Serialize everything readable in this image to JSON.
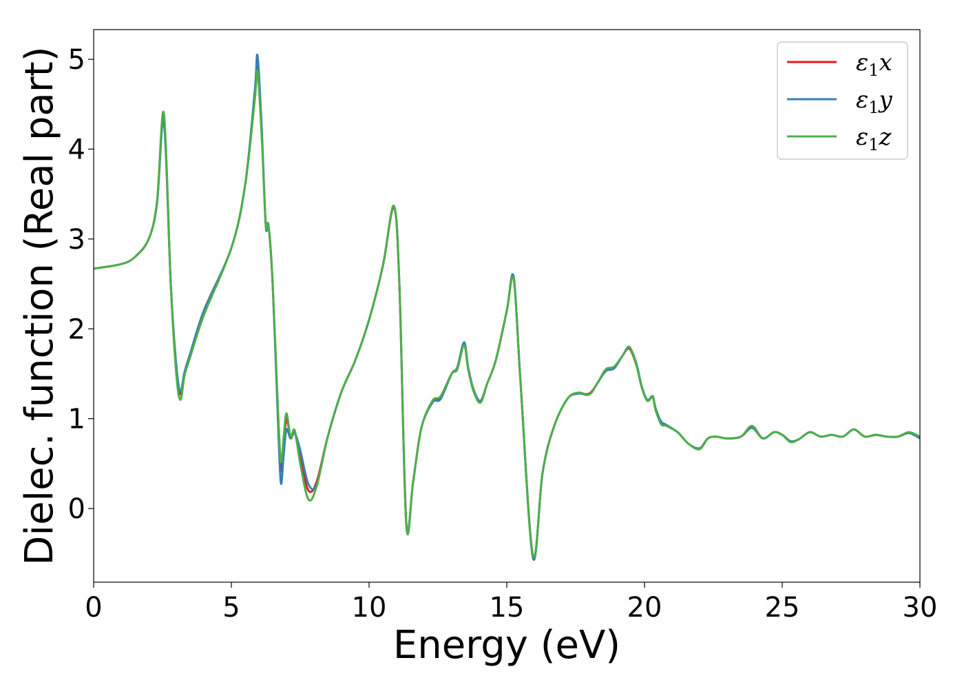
{
  "chart_data": {
    "type": "line",
    "title": "",
    "xlabel": "Energy (eV)",
    "ylabel": "Dielec. function (Real part)",
    "xlim": [
      0,
      30
    ],
    "ylim": [
      -0.82,
      5.33
    ],
    "xticks": [
      0,
      5,
      10,
      15,
      20,
      25,
      30
    ],
    "xtick_labels": [
      "0",
      "5",
      "10",
      "15",
      "20",
      "25",
      "30"
    ],
    "yticks": [
      0,
      1,
      2,
      3,
      4,
      5
    ],
    "ytick_labels": [
      "0",
      "1",
      "2",
      "3",
      "4",
      "5"
    ],
    "grid": false,
    "legend_position": "top-right",
    "series": [
      {
        "name": "ε1x",
        "name_base": "ε",
        "name_sub": "1",
        "name_var": "x",
        "color": "#e41a1c",
        "x": [
          0,
          1,
          1.5,
          2,
          2.3,
          2.55,
          2.8,
          3.0,
          3.15,
          3.3,
          3.5,
          4,
          5,
          5.5,
          5.85,
          5.95,
          6.1,
          6.25,
          6.35,
          6.5,
          6.7,
          6.8,
          6.9,
          7.0,
          7.15,
          7.3,
          7.5,
          7.8,
          8.1,
          8.5,
          9,
          9.5,
          10,
          10.5,
          10.9,
          11.1,
          11.35,
          11.6,
          11.9,
          12.3,
          12.6,
          13,
          13.2,
          13.45,
          13.6,
          13.8,
          14.05,
          14.3,
          14.6,
          15,
          15.25,
          15.5,
          15.95,
          16.3,
          16.7,
          17.2,
          17.6,
          18.0,
          18.3,
          18.6,
          18.9,
          19.2,
          19.45,
          19.7,
          19.9,
          20.1,
          20.3,
          20.4,
          20.6,
          20.8,
          21.2,
          21.6,
          22.0,
          22.3,
          22.6,
          23.0,
          23.5,
          23.9,
          24.3,
          24.7,
          25.0,
          25.3,
          25.6,
          26.0,
          26.4,
          26.8,
          27.2,
          27.6,
          28.0,
          28.4,
          28.8,
          29.2,
          29.6,
          30.0
        ],
        "values": [
          2.67,
          2.72,
          2.8,
          3.0,
          3.4,
          4.35,
          2.5,
          1.55,
          1.27,
          1.5,
          1.7,
          2.2,
          2.9,
          3.6,
          4.6,
          4.93,
          4.2,
          3.15,
          3.15,
          2.5,
          1.0,
          0.42,
          0.7,
          1.0,
          0.8,
          0.85,
          0.55,
          0.2,
          0.3,
          0.8,
          1.3,
          1.65,
          2.1,
          2.7,
          3.35,
          2.5,
          -0.15,
          0.3,
          0.9,
          1.18,
          1.25,
          1.5,
          1.55,
          1.82,
          1.55,
          1.3,
          1.2,
          1.4,
          1.65,
          2.2,
          2.57,
          1.4,
          -0.53,
          0.4,
          0.9,
          1.22,
          1.28,
          1.28,
          1.4,
          1.55,
          1.57,
          1.7,
          1.78,
          1.6,
          1.35,
          1.2,
          1.24,
          1.1,
          0.95,
          0.92,
          0.85,
          0.72,
          0.67,
          0.78,
          0.8,
          0.78,
          0.8,
          0.9,
          0.78,
          0.85,
          0.82,
          0.75,
          0.77,
          0.85,
          0.8,
          0.82,
          0.8,
          0.88,
          0.8,
          0.82,
          0.8,
          0.8,
          0.84,
          0.79
        ]
      },
      {
        "name": "ε1y",
        "name_base": "ε",
        "name_sub": "1",
        "name_var": "y",
        "color": "#377eb8",
        "x": [
          0,
          1,
          1.5,
          2,
          2.3,
          2.55,
          2.8,
          3.0,
          3.15,
          3.3,
          3.5,
          4,
          5,
          5.5,
          5.85,
          5.95,
          6.1,
          6.25,
          6.35,
          6.5,
          6.7,
          6.8,
          6.9,
          7.0,
          7.15,
          7.3,
          7.5,
          7.8,
          8.1,
          8.5,
          9,
          9.5,
          10,
          10.5,
          10.9,
          11.1,
          11.35,
          11.6,
          11.9,
          12.3,
          12.6,
          13,
          13.2,
          13.45,
          13.6,
          13.8,
          14.05,
          14.3,
          14.6,
          15,
          15.25,
          15.5,
          15.95,
          16.3,
          16.7,
          17.2,
          17.6,
          18.0,
          18.3,
          18.6,
          18.9,
          19.2,
          19.45,
          19.7,
          19.9,
          20.1,
          20.3,
          20.4,
          20.6,
          20.8,
          21.2,
          21.6,
          22.0,
          22.3,
          22.6,
          23.0,
          23.5,
          23.9,
          24.3,
          24.7,
          25.0,
          25.3,
          25.6,
          26.0,
          26.4,
          26.8,
          27.2,
          27.6,
          28.0,
          28.4,
          28.8,
          29.2,
          29.6,
          30.0
        ],
        "values": [
          2.67,
          2.72,
          2.8,
          3.0,
          3.4,
          4.3,
          2.5,
          1.6,
          1.3,
          1.52,
          1.72,
          2.2,
          2.9,
          3.6,
          4.65,
          5.04,
          4.25,
          3.15,
          3.15,
          2.5,
          0.9,
          0.28,
          0.6,
          0.88,
          0.78,
          0.84,
          0.65,
          0.27,
          0.27,
          0.8,
          1.3,
          1.65,
          2.1,
          2.7,
          3.36,
          2.5,
          -0.17,
          0.3,
          0.9,
          1.18,
          1.22,
          1.5,
          1.57,
          1.85,
          1.57,
          1.32,
          1.2,
          1.4,
          1.65,
          2.2,
          2.58,
          1.4,
          -0.55,
          0.4,
          0.9,
          1.22,
          1.28,
          1.27,
          1.4,
          1.53,
          1.56,
          1.7,
          1.79,
          1.62,
          1.36,
          1.21,
          1.25,
          1.12,
          0.97,
          0.93,
          0.85,
          0.72,
          0.67,
          0.78,
          0.8,
          0.78,
          0.8,
          0.9,
          0.78,
          0.85,
          0.82,
          0.75,
          0.77,
          0.85,
          0.8,
          0.82,
          0.8,
          0.88,
          0.8,
          0.82,
          0.8,
          0.8,
          0.84,
          0.78
        ]
      },
      {
        "name": "ε1z",
        "name_base": "ε",
        "name_sub": "1",
        "name_var": "z",
        "color": "#4daf4a",
        "x": [
          0,
          1,
          1.5,
          2,
          2.3,
          2.55,
          2.8,
          3.0,
          3.15,
          3.3,
          3.5,
          4,
          5,
          5.5,
          5.85,
          5.95,
          6.1,
          6.25,
          6.35,
          6.5,
          6.7,
          6.8,
          6.9,
          7.0,
          7.15,
          7.3,
          7.5,
          7.8,
          8.1,
          8.5,
          9,
          9.5,
          10,
          10.5,
          10.9,
          11.1,
          11.35,
          11.6,
          11.9,
          12.3,
          12.6,
          13,
          13.2,
          13.45,
          13.6,
          13.8,
          14.05,
          14.3,
          14.6,
          15,
          15.25,
          15.5,
          15.95,
          16.3,
          16.7,
          17.2,
          17.6,
          18.0,
          18.3,
          18.6,
          18.9,
          19.2,
          19.45,
          19.7,
          19.9,
          20.1,
          20.3,
          20.4,
          20.6,
          20.8,
          21.2,
          21.6,
          22.0,
          22.3,
          22.6,
          23.0,
          23.5,
          23.9,
          24.3,
          24.7,
          25.0,
          25.3,
          25.6,
          26.0,
          26.4,
          26.8,
          27.2,
          27.6,
          28.0,
          28.4,
          28.8,
          29.2,
          29.6,
          30.0
        ],
        "values": [
          2.67,
          2.72,
          2.8,
          3.0,
          3.42,
          4.4,
          2.5,
          1.5,
          1.21,
          1.48,
          1.68,
          2.15,
          2.9,
          3.6,
          4.55,
          4.86,
          4.15,
          3.17,
          3.15,
          2.5,
          1.05,
          0.52,
          0.8,
          1.06,
          0.8,
          0.87,
          0.5,
          0.1,
          0.25,
          0.8,
          1.3,
          1.65,
          2.1,
          2.7,
          3.37,
          2.5,
          -0.18,
          0.3,
          0.9,
          1.2,
          1.25,
          1.5,
          1.55,
          1.82,
          1.55,
          1.3,
          1.18,
          1.4,
          1.65,
          2.2,
          2.55,
          1.4,
          -0.52,
          0.4,
          0.9,
          1.22,
          1.29,
          1.27,
          1.4,
          1.55,
          1.58,
          1.7,
          1.8,
          1.6,
          1.35,
          1.2,
          1.24,
          1.1,
          0.94,
          0.92,
          0.85,
          0.72,
          0.66,
          0.78,
          0.8,
          0.78,
          0.8,
          0.92,
          0.78,
          0.85,
          0.82,
          0.74,
          0.77,
          0.85,
          0.8,
          0.82,
          0.8,
          0.88,
          0.8,
          0.82,
          0.8,
          0.8,
          0.85,
          0.8
        ]
      }
    ]
  }
}
